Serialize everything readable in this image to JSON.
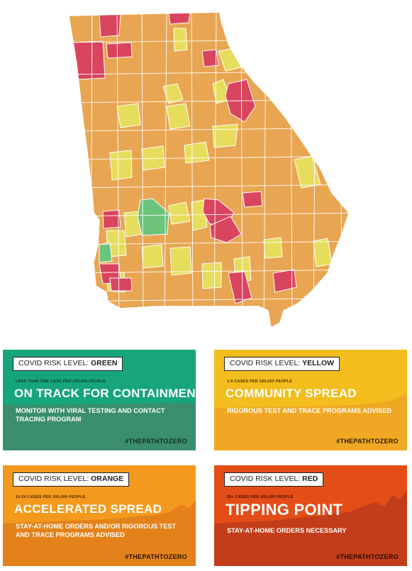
{
  "colors": {
    "green": "#6cc37a",
    "yellow": "#e7dd5c",
    "orange": "#e8a552",
    "red": "#d9445f",
    "border": "#ffffff",
    "card_green_top": "#17a57b",
    "card_green_bottom": "#3a8e6e",
    "card_yellow_top": "#f2bd1d",
    "card_yellow_bottom": "#f0a824",
    "card_orange_top": "#f39a1e",
    "card_orange_bottom": "#e3821b",
    "card_red_top": "#e44d17",
    "card_red_bottom": "#c23d1a"
  },
  "cards": {
    "green": {
      "level_prefix": "COVID RISK LEVEL: ",
      "level_name": "GREEN",
      "cases": "LESS THAN ONE CASE PER 100,000 PEOPLE",
      "headline": "ON TRACK FOR CONTAINMENT",
      "body": "MONITOR WITH VIRAL TESTING AND CONTACT TRACING PROGRAM",
      "hashtag": "#THEPATHTOZERO"
    },
    "yellow": {
      "level_prefix": "COVID RISK LEVEL: ",
      "level_name": "YELLOW",
      "cases": "1-9 CASES PER 100,000 PEOPLE",
      "headline": "COMMUNITY SPREAD",
      "body": "RIGOROUS TEST AND TRACE PROGRAMS ADVISED",
      "hashtag": "#THEPATHTOZERO"
    },
    "orange": {
      "level_prefix": "COVID RISK LEVEL: ",
      "level_name": "ORANGE",
      "cases": "10-24 CASES PER 100,000 PEOPLE",
      "headline": "ACCELERATED SPREAD",
      "body": "STAY-AT-HOME ORDERS AND/OR RIGOROUS TEST AND TRACE PROGRAMS ADVISED",
      "hashtag": "#THEPATHTOZERO"
    },
    "red": {
      "level_prefix": "COVID RISK LEVEL: ",
      "level_name": "RED",
      "cases": "25+ CASES PER 100,000 PEOPLE",
      "headline": "TIPPING POINT",
      "body": "STAY-AT-HOME ORDERS NECESSARY",
      "hashtag": "#THEPATHTOZERO"
    }
  },
  "map": {
    "region": "Georgia",
    "risk_levels_shown": [
      "red",
      "orange",
      "yellow",
      "green"
    ]
  }
}
